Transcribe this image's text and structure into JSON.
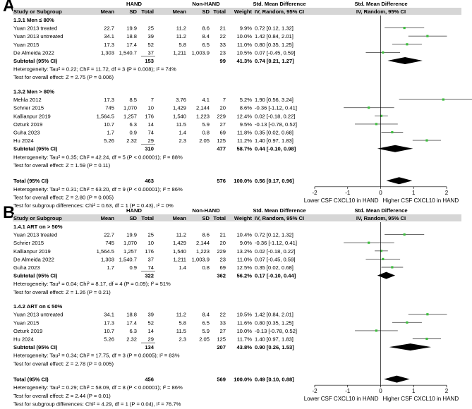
{
  "panels": [
    {
      "letter": "A",
      "headers": {
        "group1": "HAND",
        "group2": "Non-HAND",
        "study": "Study or Subgroup",
        "mean": "Mean",
        "sd": "SD",
        "total": "Total",
        "weight": "Weight",
        "effect1": "Std. Mean Difference",
        "effect1_sub": "IV, Random, 95% CI",
        "effect2": "Std. Mean Difference",
        "effect2_sub": "IV, Random, 95% CI"
      },
      "subgroups": [
        {
          "title": "1.3.1 Men ≤ 80%",
          "studies": [
            {
              "name": "Yuan 2013 treated",
              "m1": "22.7",
              "sd1": "19.9",
              "n1": "25",
              "m2": "11.2",
              "sd2": "8.6",
              "n2": "21",
              "weight": "9.9%",
              "ci": "0.72 [0.12, 1.32]",
              "est": 0.72,
              "lo": 0.12,
              "hi": 1.32
            },
            {
              "name": "Yuan 2013 untreated",
              "m1": "34.1",
              "sd1": "18.8",
              "n1": "39",
              "m2": "11.2",
              "sd2": "8.4",
              "n2": "22",
              "weight": "10.0%",
              "ci": "1.42 [0.84, 2.01]",
              "est": 1.42,
              "lo": 0.84,
              "hi": 2.01
            },
            {
              "name": "Yuan 2015",
              "m1": "17.3",
              "sd1": "17.4",
              "n1": "52",
              "m2": "5.8",
              "sd2": "6.5",
              "n2": "33",
              "weight": "11.0%",
              "ci": "0.80 [0.35, 1.25]",
              "est": 0.8,
              "lo": 0.35,
              "hi": 1.25
            },
            {
              "name": "De Almeida 2022",
              "m1": "1,303",
              "sd1": "1,540.7",
              "n1": "37",
              "m2": "1,211",
              "sd2": "1,003.9",
              "n2": "23",
              "weight": "10.5%",
              "ci": "0.07 [-0.45, 0.59]",
              "est": 0.07,
              "lo": -0.45,
              "hi": 0.59
            }
          ],
          "subtotal": {
            "label": "Subtotal (95% CI)",
            "n1": "153",
            "n2": "99",
            "weight": "41.3%",
            "ci": "0.74 [0.21, 1.27]",
            "est": 0.74,
            "lo": 0.21,
            "hi": 1.27
          },
          "heterogeneity": "Heterogeneity: Tau² = 0.22; Chi² = 11.72, df = 3 (P = 0.008); I² = 74%",
          "overall_test": "Test for overall effect: Z = 2.75 (P = 0.006)"
        },
        {
          "title": "1.3.2 Men > 80%",
          "studies": [
            {
              "name": "Mehla 2012",
              "m1": "17.3",
              "sd1": "8.5",
              "n1": "7",
              "m2": "3.76",
              "sd2": "4.1",
              "n2": "7",
              "weight": "5.2%",
              "ci": "1.90 [0.56, 3.24]",
              "est": 1.9,
              "lo": 0.56,
              "hi": 3.24
            },
            {
              "name": "Schrier 2015",
              "m1": "745",
              "sd1": "1,070",
              "n1": "10",
              "m2": "1,429",
              "sd2": "2,144",
              "n2": "20",
              "weight": "8.6%",
              "ci": "-0.36 [-1.12, 0.41]",
              "est": -0.36,
              "lo": -1.12,
              "hi": 0.41
            },
            {
              "name": "Kallianpur 2019",
              "m1": "1,564.5",
              "sd1": "1,257",
              "n1": "176",
              "m2": "1,540",
              "sd2": "1,223",
              "n2": "229",
              "weight": "12.4%",
              "ci": "0.02 [-0.18, 0.22]",
              "est": 0.02,
              "lo": -0.18,
              "hi": 0.22
            },
            {
              "name": "Ozturk 2019",
              "m1": "10.7",
              "sd1": "6.3",
              "n1": "14",
              "m2": "11.5",
              "sd2": "5.9",
              "n2": "27",
              "weight": "9.5%",
              "ci": "-0.13 [-0.78, 0.52]",
              "est": -0.13,
              "lo": -0.78,
              "hi": 0.52
            },
            {
              "name": "Guha 2023",
              "m1": "1.7",
              "sd1": "0.9",
              "n1": "74",
              "m2": "1.4",
              "sd2": "0.8",
              "n2": "69",
              "weight": "11.8%",
              "ci": "0.35 [0.02, 0.68]",
              "est": 0.35,
              "lo": 0.02,
              "hi": 0.68
            },
            {
              "name": "Hu 2024",
              "m1": "5.26",
              "sd1": "2.32",
              "n1": "29",
              "m2": "2.3",
              "sd2": "2.05",
              "n2": "125",
              "weight": "11.2%",
              "ci": "1.40 [0.97, 1.83]",
              "est": 1.4,
              "lo": 0.97,
              "hi": 1.83
            }
          ],
          "subtotal": {
            "label": "Subtotal (95% CI)",
            "n1": "310",
            "n2": "477",
            "weight": "58.7%",
            "ci": "0.44 [-0.10, 0.98]",
            "est": 0.44,
            "lo": -0.1,
            "hi": 0.98
          },
          "heterogeneity": "Heterogeneity: Tau² = 0.35; Chi² = 42.24, df = 5 (P < 0.00001); I² = 88%",
          "overall_test": "Test for overall effect: Z = 1.59 (P = 0.11)"
        }
      ],
      "total": {
        "label": "Total (95% CI)",
        "n1": "463",
        "n2": "576",
        "weight": "100.0%",
        "ci": "0.56 [0.17, 0.96]",
        "est": 0.56,
        "lo": 0.17,
        "hi": 0.96
      },
      "total_heterogeneity": "Heterogeneity: Tau² = 0.31; Chi² = 63.20, df = 9 (P < 0.00001); I² = 86%",
      "total_overall_test": "Test for overall effect: Z = 2.80 (P = 0.005)",
      "subgroup_test": "Test for subgroup differences: Chi² = 0.63, df = 1 (P = 0.43), I² = 0%",
      "axis": {
        "min": -2,
        "max": 2,
        "ticks": [
          "-2",
          "-1",
          "0",
          "1",
          "2"
        ],
        "left_label": "Lower CSF CXCL10 in HAND",
        "right_label": "Higher CSF CXCL10 in HAND"
      }
    },
    {
      "letter": "B",
      "headers": {
        "group1": "HAND",
        "group2": "Non-HAND",
        "study": "Study or Subgroup",
        "mean": "Mean",
        "sd": "SD",
        "total": "Total",
        "weight": "Weight",
        "effect1": "Std. Mean Difference",
        "effect1_sub": "IV, Random, 95% CI",
        "effect2": "Std. Mean Difference",
        "effect2_sub": "IV, Random, 95% CI"
      },
      "subgroups": [
        {
          "title": "1.4.1 ART on > 50%",
          "studies": [
            {
              "name": "Yuan 2013 treated",
              "m1": "22.7",
              "sd1": "19.9",
              "n1": "25",
              "m2": "11.2",
              "sd2": "8.6",
              "n2": "21",
              "weight": "10.4%",
              "ci": "0.72 [0.12, 1.32]",
              "est": 0.72,
              "lo": 0.12,
              "hi": 1.32
            },
            {
              "name": "Schrier 2015",
              "m1": "745",
              "sd1": "1,070",
              "n1": "10",
              "m2": "1,429",
              "sd2": "2,144",
              "n2": "20",
              "weight": "9.0%",
              "ci": "-0.36 [-1.12, 0.41]",
              "est": -0.36,
              "lo": -1.12,
              "hi": 0.41
            },
            {
              "name": "Kallianpur 2019",
              "m1": "1,564.5",
              "sd1": "1,257",
              "n1": "176",
              "m2": "1,540",
              "sd2": "1,223",
              "n2": "229",
              "weight": "13.2%",
              "ci": "0.02 [-0.18, 0.22]",
              "est": 0.02,
              "lo": -0.18,
              "hi": 0.22
            },
            {
              "name": "De Almeida 2022",
              "m1": "1,303",
              "sd1": "1,540.7",
              "n1": "37",
              "m2": "1,211",
              "sd2": "1,003.9",
              "n2": "23",
              "weight": "11.0%",
              "ci": "0.07 [-0.45, 0.59]",
              "est": 0.07,
              "lo": -0.45,
              "hi": 0.59
            },
            {
              "name": "Guha 2023",
              "m1": "1.7",
              "sd1": "0.9",
              "n1": "74",
              "m2": "1.4",
              "sd2": "0.8",
              "n2": "69",
              "weight": "12.5%",
              "ci": "0.35 [0.02, 0.68]",
              "est": 0.35,
              "lo": 0.02,
              "hi": 0.68
            }
          ],
          "subtotal": {
            "label": "Subtotal (95% CI)",
            "n1": "322",
            "n2": "362",
            "weight": "56.2%",
            "ci": "0.17 [-0.10, 0.44]",
            "est": 0.17,
            "lo": -0.1,
            "hi": 0.44
          },
          "heterogeneity": "Heterogeneity: Tau² = 0.04; Chi² = 8.17, df = 4 (P = 0.09); I² = 51%",
          "overall_test": "Test for overall effect: Z = 1.26 (P = 0.21)"
        },
        {
          "title": "1.4.2 ART on ≤ 50%",
          "studies": [
            {
              "name": "Yuan 2013 untreated",
              "m1": "34.1",
              "sd1": "18.8",
              "n1": "39",
              "m2": "11.2",
              "sd2": "8.4",
              "n2": "22",
              "weight": "10.5%",
              "ci": "1.42 [0.84, 2.01]",
              "est": 1.42,
              "lo": 0.84,
              "hi": 2.01
            },
            {
              "name": "Yuan 2015",
              "m1": "17.3",
              "sd1": "17.4",
              "n1": "52",
              "m2": "5.8",
              "sd2": "6.5",
              "n2": "33",
              "weight": "11.6%",
              "ci": "0.80 [0.35, 1.25]",
              "est": 0.8,
              "lo": 0.35,
              "hi": 1.25
            },
            {
              "name": "Ozturk 2019",
              "m1": "10.7",
              "sd1": "6.3",
              "n1": "14",
              "m2": "11.5",
              "sd2": "5.9",
              "n2": "27",
              "weight": "10.0%",
              "ci": "-0.13 [-0.78, 0.52]",
              "est": -0.13,
              "lo": -0.78,
              "hi": 0.52
            },
            {
              "name": "Hu 2024",
              "m1": "5.26",
              "sd1": "2.32",
              "n1": "29",
              "m2": "2.3",
              "sd2": "2.05",
              "n2": "125",
              "weight": "11.7%",
              "ci": "1.40 [0.97, 1.83]",
              "est": 1.4,
              "lo": 0.97,
              "hi": 1.83
            }
          ],
          "subtotal": {
            "label": "Subtotal (95% CI)",
            "n1": "134",
            "n2": "207",
            "weight": "43.8%",
            "ci": "0.90 [0.26, 1.53]",
            "est": 0.9,
            "lo": 0.26,
            "hi": 1.53
          },
          "heterogeneity": "Heterogeneity: Tau² = 0.34; Chi² = 17.75, df = 3 (P = 0.0005); I² = 83%",
          "overall_test": "Test for overall effect: Z = 2.78 (P = 0.005)"
        }
      ],
      "total": {
        "label": "Total (95% CI)",
        "n1": "456",
        "n2": "569",
        "weight": "100.0%",
        "ci": "0.49 [0.10, 0.88]",
        "est": 0.49,
        "lo": 0.1,
        "hi": 0.88
      },
      "total_heterogeneity": "Heterogeneity: Tau² = 0.29; Chi² = 58.09, df = 8 (P < 0.00001); I² = 86%",
      "total_overall_test": "Test for overall effect: Z = 2.44 (P = 0.01)",
      "subgroup_test": "Test for subgroup differences: Chi² = 4.29, df = 1 (P = 0.04), I² = 76.7%",
      "axis": {
        "min": -2,
        "max": 2,
        "ticks": [
          "-2",
          "-1",
          "0",
          "1",
          "2"
        ],
        "left_label": "Lower CSF CXCL10 in HAND",
        "right_label": "Higher CSF CXCL10 in HAND"
      }
    }
  ],
  "colors": {
    "header_bg": "#d6d6d6",
    "marker": "#3fbf3f",
    "line": "#000000",
    "ci_line": "#555555"
  },
  "chart_data": [
    {
      "type": "forest",
      "title": "A",
      "categories": [
        "Yuan 2013 treated",
        "Yuan 2013 untreated",
        "Yuan 2015",
        "De Almeida 2022",
        "Subtotal 1.3.1",
        "Mehla 2012",
        "Schrier 2015",
        "Kallianpur 2019",
        "Ozturk 2019",
        "Guha 2023",
        "Hu 2024",
        "Subtotal 1.3.2",
        "Total"
      ],
      "values": [
        0.72,
        1.42,
        0.8,
        0.07,
        0.74,
        1.9,
        -0.36,
        0.02,
        -0.13,
        0.35,
        1.4,
        0.44,
        0.56
      ],
      "xlim": [
        -2,
        2
      ],
      "xlabel": "Std. Mean Difference"
    },
    {
      "type": "forest",
      "title": "B",
      "categories": [
        "Yuan 2013 treated",
        "Schrier 2015",
        "Kallianpur 2019",
        "De Almeida 2022",
        "Guha 2023",
        "Subtotal 1.4.1",
        "Yuan 2013 untreated",
        "Yuan 2015",
        "Ozturk 2019",
        "Hu 2024",
        "Subtotal 1.4.2",
        "Total"
      ],
      "values": [
        0.72,
        -0.36,
        0.02,
        0.07,
        0.35,
        0.17,
        1.42,
        0.8,
        -0.13,
        1.4,
        0.9,
        0.49
      ],
      "xlim": [
        -2,
        2
      ],
      "xlabel": "Std. Mean Difference"
    }
  ]
}
